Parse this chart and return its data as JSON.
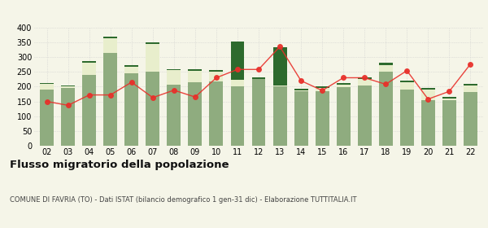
{
  "years": [
    "02",
    "03",
    "04",
    "05",
    "06",
    "07",
    "08",
    "09",
    "10",
    "11",
    "12",
    "13",
    "14",
    "15",
    "16",
    "17",
    "18",
    "19",
    "20",
    "21",
    "22"
  ],
  "iscritti_altri_comuni": [
    190,
    195,
    240,
    315,
    245,
    250,
    207,
    215,
    218,
    200,
    225,
    200,
    185,
    185,
    198,
    205,
    250,
    190,
    155,
    155,
    183
  ],
  "iscritti_estero": [
    18,
    5,
    42,
    48,
    22,
    95,
    48,
    38,
    32,
    23,
    0,
    4,
    2,
    10,
    8,
    22,
    22,
    26,
    35,
    5,
    22
  ],
  "iscritti_altri": [
    5,
    5,
    4,
    5,
    5,
    5,
    5,
    5,
    5,
    130,
    5,
    130,
    5,
    5,
    5,
    5,
    10,
    5,
    5,
    5,
    5
  ],
  "cancellati": [
    150,
    137,
    172,
    172,
    215,
    163,
    188,
    165,
    230,
    258,
    258,
    335,
    220,
    187,
    230,
    230,
    208,
    254,
    158,
    184,
    276
  ],
  "bar_color_comuni": "#8fac7f",
  "bar_color_estero": "#e8eecc",
  "bar_color_altri": "#2d6a2d",
  "line_color": "#e8302a",
  "title": "Flusso migratorio della popolazione",
  "subtitle": "COMUNE DI FAVRIA (TO) - Dati ISTAT (bilancio demografico 1 gen-31 dic) - Elaborazione TUTTITALIA.IT",
  "ylim": [
    0,
    400
  ],
  "yticks": [
    0,
    50,
    100,
    150,
    200,
    250,
    300,
    350,
    400
  ],
  "bg_color": "#f5f5e8"
}
